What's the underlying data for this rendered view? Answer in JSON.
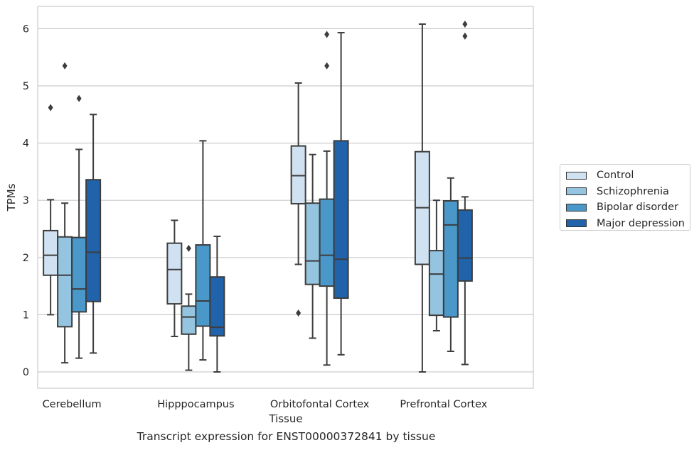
{
  "caption": "Transcript expression for ENST00000372841 by tissue",
  "chart_data": {
    "type": "box",
    "xlabel": "Tissue",
    "ylabel": "TPMs",
    "ylim": [
      -0.3,
      6.4
    ],
    "yticks": [
      0,
      1,
      2,
      3,
      4,
      5,
      6
    ],
    "grid": "horizontal",
    "legend_placement": "right",
    "categories": [
      "Cerebellum",
      "Hipppocampus",
      "Orbitofontal Cortex",
      "Prefrontal Cortex"
    ],
    "series": [
      {
        "name": "Control",
        "color": "#d0e1f2",
        "boxes": [
          {
            "whislo": 1.0,
            "q1": 1.69,
            "med": 2.04,
            "q3": 2.47,
            "whishi": 3.01,
            "fliers": [
              4.62
            ]
          },
          {
            "whislo": 0.62,
            "q1": 1.19,
            "med": 1.79,
            "q3": 2.25,
            "whishi": 2.65,
            "fliers": []
          },
          {
            "whislo": 1.88,
            "q1": 2.94,
            "med": 3.43,
            "q3": 3.95,
            "whishi": 5.05,
            "fliers": [
              1.03
            ]
          },
          {
            "whislo": 0.0,
            "q1": 1.88,
            "med": 2.87,
            "q3": 3.85,
            "whishi": 6.08,
            "fliers": []
          }
        ]
      },
      {
        "name": "Schizophrenia",
        "color": "#94c4df",
        "boxes": [
          {
            "whislo": 0.16,
            "q1": 0.79,
            "med": 1.69,
            "q3": 2.36,
            "whishi": 2.95,
            "fliers": [
              5.35
            ]
          },
          {
            "whislo": 0.03,
            "q1": 0.66,
            "med": 0.96,
            "q3": 1.15,
            "whishi": 1.36,
            "fliers": [
              2.16
            ]
          },
          {
            "whislo": 0.59,
            "q1": 1.53,
            "med": 1.94,
            "q3": 2.95,
            "whishi": 3.8,
            "fliers": []
          },
          {
            "whislo": 0.72,
            "q1": 0.99,
            "med": 1.71,
            "q3": 2.12,
            "whishi": 3.0,
            "fliers": []
          }
        ]
      },
      {
        "name": "Bipolar disorder",
        "color": "#4a98c9",
        "boxes": [
          {
            "whislo": 0.24,
            "q1": 1.05,
            "med": 1.45,
            "q3": 2.35,
            "whishi": 3.89,
            "fliers": [
              4.78
            ]
          },
          {
            "whislo": 0.21,
            "q1": 0.8,
            "med": 1.24,
            "q3": 2.22,
            "whishi": 4.04,
            "fliers": []
          },
          {
            "whislo": 0.12,
            "q1": 1.5,
            "med": 2.04,
            "q3": 3.02,
            "whishi": 3.86,
            "fliers": [
              5.9,
              5.35
            ]
          },
          {
            "whislo": 0.36,
            "q1": 0.96,
            "med": 2.57,
            "q3": 2.99,
            "whishi": 3.39,
            "fliers": []
          }
        ]
      },
      {
        "name": "Major depression",
        "color": "#2163aa",
        "boxes": [
          {
            "whislo": 0.33,
            "q1": 1.23,
            "med": 2.09,
            "q3": 3.36,
            "whishi": 4.5,
            "fliers": []
          },
          {
            "whislo": 0.0,
            "q1": 0.63,
            "med": 0.78,
            "q3": 1.66,
            "whishi": 2.37,
            "fliers": []
          },
          {
            "whislo": 0.3,
            "q1": 1.29,
            "med": 1.97,
            "q3": 4.04,
            "whishi": 5.93,
            "fliers": []
          },
          {
            "whislo": 0.13,
            "q1": 1.59,
            "med": 1.99,
            "q3": 2.83,
            "whishi": 3.06,
            "fliers": [
              6.08,
              5.87
            ]
          }
        ]
      }
    ]
  }
}
